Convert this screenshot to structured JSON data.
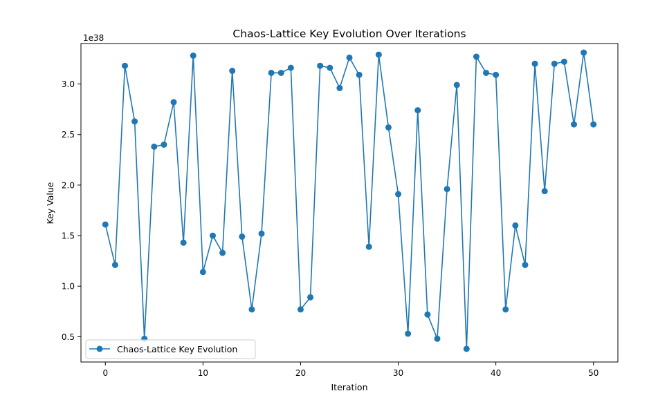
{
  "chart_data": {
    "type": "line",
    "title": "Chaos-Lattice Key Evolution Over Iterations",
    "xlabel": "Iteration",
    "ylabel": "Key Value",
    "y_offset_label": "1e38",
    "y_scale_exponent": 38,
    "xlim": [
      -2.5,
      52.5
    ],
    "ylim": [
      0.25,
      3.4
    ],
    "x_ticks": [
      0,
      10,
      20,
      30,
      40,
      50
    ],
    "x_tick_labels": [
      "0",
      "10",
      "20",
      "30",
      "40",
      "50"
    ],
    "y_ticks": [
      0.5,
      1.0,
      1.5,
      2.0,
      2.5,
      3.0
    ],
    "y_tick_labels": [
      "0.5",
      "1.0",
      "1.5",
      "2.0",
      "2.5",
      "3.0"
    ],
    "grid": false,
    "legend_position": "lower-left",
    "series": [
      {
        "name": "Chaos-Lattice Key Evolution",
        "color": "#1f77b4",
        "marker": "circle",
        "x": [
          0,
          1,
          2,
          3,
          4,
          5,
          6,
          7,
          8,
          9,
          10,
          11,
          12,
          13,
          14,
          15,
          16,
          17,
          18,
          19,
          20,
          21,
          22,
          23,
          24,
          25,
          26,
          27,
          28,
          29,
          30,
          31,
          32,
          33,
          34,
          35,
          36,
          37,
          38,
          39,
          40,
          41,
          42,
          43,
          44,
          45,
          46,
          47,
          48,
          49,
          50
        ],
        "values": [
          1.61,
          1.21,
          3.18,
          2.63,
          0.48,
          2.38,
          2.4,
          2.82,
          1.43,
          3.28,
          1.14,
          1.5,
          1.33,
          3.13,
          1.49,
          0.77,
          1.52,
          3.11,
          3.11,
          3.16,
          0.77,
          0.89,
          3.18,
          3.16,
          2.96,
          3.26,
          3.09,
          1.39,
          3.29,
          2.57,
          1.91,
          0.53,
          2.74,
          0.72,
          0.48,
          1.96,
          2.99,
          0.38,
          3.27,
          3.11,
          3.09,
          0.77,
          1.6,
          1.21,
          3.2,
          1.94,
          3.2,
          3.22,
          2.6,
          3.31,
          2.6
        ]
      }
    ]
  }
}
